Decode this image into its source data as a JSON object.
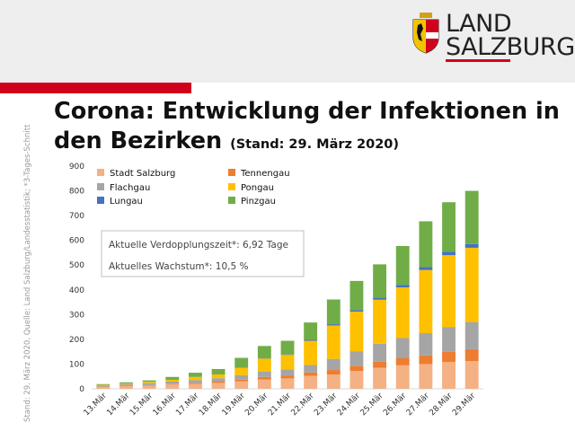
{
  "header": {
    "logo_line1": "LAND",
    "logo_line2": "SALZBURG",
    "brand_color": "#d0021b"
  },
  "source_note": "Stand: 29. März 2020, Quelle: Land Salzburg/Landesstatistik; *3-Tages-Schnitt",
  "title": {
    "main": "Corona: Entwicklung der Infektionen in den Bezirken",
    "sub": "(Stand: 29. März 2020)"
  },
  "annotation": {
    "line1": "Aktuelle Verdopplungszeit*: 6,92 Tage",
    "line2": "Aktuelles Wachstum*:  10,5 %"
  },
  "chart_data": {
    "type": "bar",
    "stacked": true,
    "categories": [
      "13.Mär",
      "14.Mär",
      "15.Mär",
      "16.Mär",
      "17.Mär",
      "18.Mär",
      "19.Mär",
      "20.Mär",
      "21.Mär",
      "22.Mär",
      "23.Mär",
      "24.Mär",
      "25.Mär",
      "26.Mär",
      "27.Mär",
      "28.Mär",
      "29.Mär"
    ],
    "ylim": [
      0,
      900
    ],
    "yticks": [
      0,
      100,
      200,
      300,
      400,
      500,
      600,
      700,
      800,
      900
    ],
    "grid": false,
    "legend_position": "top-left",
    "series": [
      {
        "name": "Stadt Salzburg",
        "color": "#f4b183",
        "values": [
          8,
          10,
          13,
          17,
          20,
          24,
          30,
          38,
          42,
          52,
          58,
          72,
          85,
          95,
          100,
          108,
          112
        ]
      },
      {
        "name": "Tennengau",
        "color": "#ed7d31",
        "values": [
          1,
          1,
          2,
          2,
          3,
          5,
          7,
          10,
          12,
          14,
          18,
          20,
          25,
          30,
          35,
          42,
          48
        ]
      },
      {
        "name": "Flachgau",
        "color": "#a5a5a5",
        "values": [
          5,
          7,
          8,
          10,
          12,
          14,
          18,
          22,
          25,
          30,
          45,
          60,
          72,
          80,
          90,
          100,
          110
        ]
      },
      {
        "name": "Pongau",
        "color": "#ffc000",
        "values": [
          2,
          3,
          5,
          7,
          13,
          15,
          30,
          52,
          58,
          98,
          135,
          160,
          178,
          205,
          255,
          290,
          300
        ]
      },
      {
        "name": "Lungau",
        "color": "#4472c4",
        "values": [
          0,
          0,
          0,
          0,
          0,
          0,
          0,
          1,
          2,
          4,
          5,
          6,
          8,
          10,
          12,
          14,
          15
        ]
      },
      {
        "name": "Pinzgau",
        "color": "#70ad47",
        "values": [
          3,
          5,
          6,
          12,
          17,
          22,
          40,
          50,
          55,
          70,
          100,
          118,
          135,
          157,
          185,
          200,
          215
        ]
      }
    ]
  }
}
